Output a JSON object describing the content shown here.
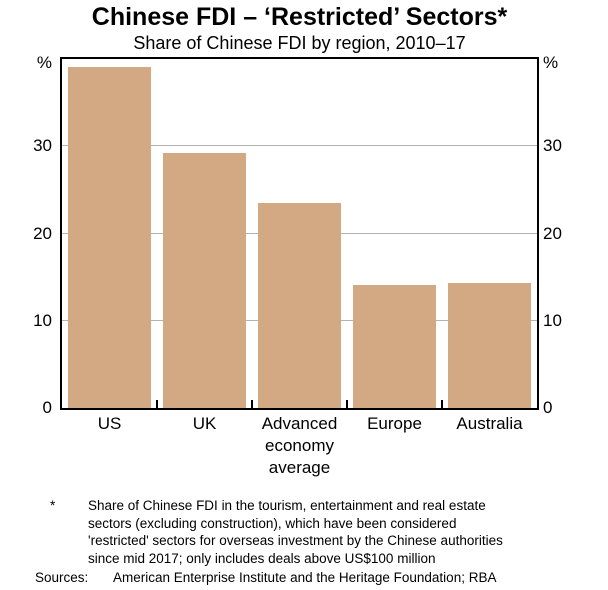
{
  "chart_data": {
    "type": "bar",
    "title": "Chinese FDI – ‘Restricted’ Sectors*",
    "subtitle": "Share of Chinese FDI by region, 2010–17",
    "unit": "%",
    "categories": [
      "US",
      "UK",
      "Advanced economy average",
      "Europe",
      "Australia"
    ],
    "values": [
      39.1,
      29.2,
      23.5,
      14.1,
      14.3
    ],
    "ylim": [
      0,
      40
    ],
    "yticks": [
      0,
      10,
      20,
      30
    ],
    "grid": true,
    "legend_position": "none",
    "bar_color": "#d2a982",
    "gridline_color": "#b3b3b3",
    "axis_color": "#000000"
  },
  "footnote": {
    "marker": "*",
    "text": "Share of Chinese FDI in the tourism, entertainment and real estate sectors (excluding construction), which have been considered 'restricted' sectors for overseas investment by the Chinese authorities since mid 2017; only includes deals above US$100 million",
    "sources_label": "Sources:",
    "sources": "American Enterprise Institute and the Heritage Foundation; RBA"
  }
}
